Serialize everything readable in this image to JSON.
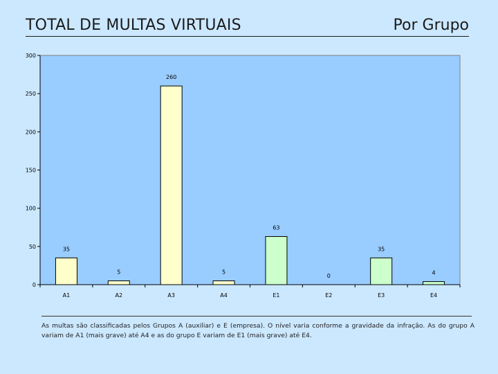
{
  "header": {
    "title": "TOTAL DE MULTAS VIRTUAIS",
    "subtitle": "Por Grupo"
  },
  "colors": {
    "background": "#cce8ff",
    "plot_area": "#99ccff",
    "group_a_bar": "#ffffcc",
    "group_e_bar": "#ccffcc",
    "bar_outline": "#000000"
  },
  "chart_data": {
    "type": "bar",
    "categories": [
      "A1",
      "A2",
      "A3",
      "A4",
      "E1",
      "E2",
      "E3",
      "E4"
    ],
    "values": [
      35,
      5,
      260,
      5,
      63,
      0,
      35,
      4
    ],
    "data_labels": [
      "35",
      "5",
      "260",
      "5",
      "63",
      "0",
      "35",
      "4"
    ],
    "bar_colors": [
      "#ffffcc",
      "#ffffcc",
      "#ffffcc",
      "#ffffcc",
      "#ccffcc",
      "#ccffcc",
      "#ccffcc",
      "#ccffcc"
    ],
    "title": "",
    "xlabel": "",
    "ylabel": "",
    "ylim": [
      0,
      300
    ],
    "yticks": [
      0,
      50,
      100,
      150,
      200,
      250,
      300
    ],
    "ytick_labels": [
      "0",
      "50",
      "100",
      "150",
      "200",
      "250",
      "300"
    ],
    "grid": false,
    "legend": "none"
  },
  "footnote": {
    "text": "As multas são classificadas pelos Grupos A (auxiliar) e E (empresa). O nível varia conforme a gravidade da infração. As do grupo A variam de A1 (mais grave) até A4 e as do grupo E variam de E1 (mais grave) até E4."
  }
}
